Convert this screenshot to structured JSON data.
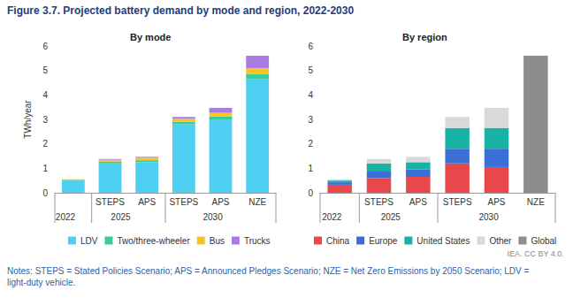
{
  "title": "Figure 3.7. Projected battery demand by mode and region, 2022-2030",
  "notes": "Notes: STEPS = Stated Policies Scenario; APS = Announced Pledges Scenario; NZE = Net Zero Emissions by 2050 Scenario; LDV = light-duty vehicle.",
  "source": "IEA. CC BY 4.0.",
  "chart_data": [
    {
      "type": "bar",
      "title": "By mode",
      "y_label": "TWh/year",
      "stacked": true,
      "grid": false,
      "legend": "bottom",
      "categories": [
        null,
        "STEPS",
        "APS",
        "STEPS",
        "APS",
        "NZE"
      ],
      "groups": [
        "2022",
        "2025",
        "2025",
        "2030",
        "2030",
        "2030"
      ],
      "ylim": [
        0,
        6
      ],
      "yticks": [
        0,
        1,
        2,
        3,
        4,
        5,
        6
      ],
      "series": [
        {
          "name": "LDV",
          "color": "#4fcff2",
          "values": [
            0.5,
            1.2,
            1.25,
            2.8,
            3.0,
            4.65
          ]
        },
        {
          "name": "Two/three-wheeler",
          "color": "#3ec99b",
          "values": [
            0.03,
            0.08,
            0.08,
            0.1,
            0.12,
            0.2
          ]
        },
        {
          "name": "Bus",
          "color": "#f6c423",
          "values": [
            0.02,
            0.07,
            0.1,
            0.12,
            0.15,
            0.25
          ]
        },
        {
          "name": "Trucks",
          "color": "#a97be3",
          "values": [
            0.0,
            0.03,
            0.04,
            0.08,
            0.2,
            0.5
          ]
        }
      ]
    },
    {
      "type": "bar",
      "title": "By region",
      "stacked": true,
      "grid": false,
      "legend": "bottom",
      "categories": [
        null,
        "STEPS",
        "APS",
        "STEPS",
        "APS",
        "NZE"
      ],
      "groups": [
        "2022",
        "2025",
        "2025",
        "2030",
        "2030",
        "2030"
      ],
      "ylim": [
        0,
        6
      ],
      "yticks": [
        0,
        1,
        2,
        3,
        4,
        5,
        6
      ],
      "series": [
        {
          "name": "China",
          "color": "#e8484b",
          "values": [
            0.33,
            0.6,
            0.65,
            1.2,
            1.05,
            null
          ]
        },
        {
          "name": "Europe",
          "color": "#3b6fd6",
          "values": [
            0.1,
            0.3,
            0.3,
            0.6,
            0.75,
            null
          ]
        },
        {
          "name": "United States",
          "color": "#19b2a6",
          "values": [
            0.07,
            0.3,
            0.3,
            0.85,
            0.85,
            null
          ]
        },
        {
          "name": "Other",
          "color": "#d9d9d9",
          "values": [
            0.05,
            0.18,
            0.22,
            0.45,
            0.82,
            null
          ]
        },
        {
          "name": "Global",
          "color": "#8c8c8c",
          "values": [
            null,
            null,
            null,
            null,
            null,
            5.6
          ]
        }
      ]
    }
  ]
}
